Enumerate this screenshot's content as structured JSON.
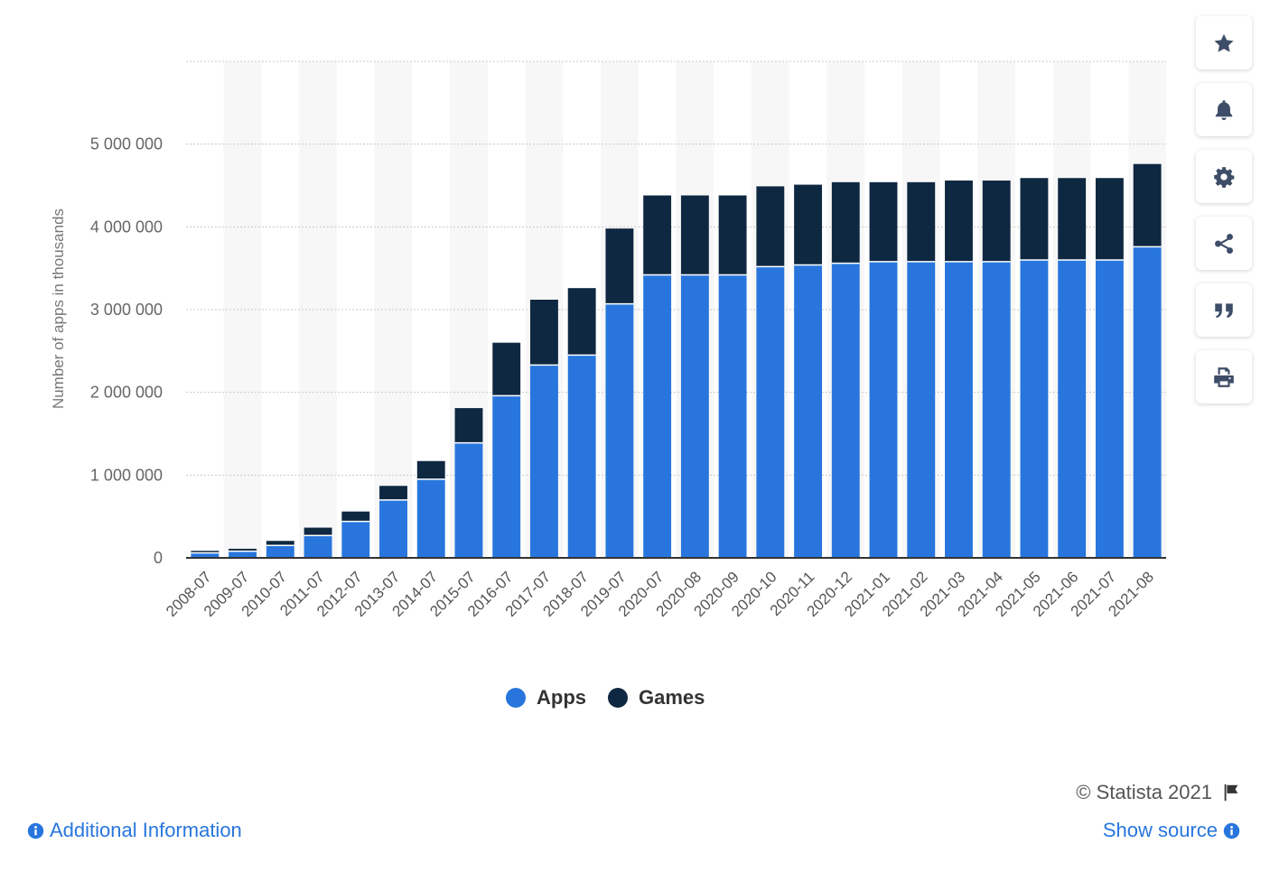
{
  "chart_data": {
    "type": "bar",
    "stacked": true,
    "ylabel": "Number of apps in thousands",
    "xlabel": "",
    "ylim": [
      0,
      6000000
    ],
    "yticks": [
      0,
      1000000,
      2000000,
      3000000,
      4000000,
      5000000
    ],
    "ytick_labels": [
      "0",
      "1 000 000",
      "2 000 000",
      "3 000 000",
      "4 000 000",
      "5 000 000"
    ],
    "grid": true,
    "legend_position": "bottom-center",
    "categories": [
      "2008-07",
      "2009-07",
      "2010-07",
      "2011-07",
      "2012-07",
      "2013-07",
      "2014-07",
      "2015-07",
      "2016-07",
      "2017-07",
      "2018-07",
      "2019-07",
      "2020-07",
      "2020-08",
      "2020-09",
      "2020-10",
      "2020-11",
      "2020-12",
      "2021-01",
      "2021-02",
      "2021-03",
      "2021-04",
      "2021-05",
      "2021-06",
      "2021-07",
      "2021-08"
    ],
    "series": [
      {
        "name": "Apps",
        "color": "#2876dd",
        "values": [
          60000,
          80000,
          150000,
          270000,
          440000,
          700000,
          950000,
          1390000,
          1960000,
          2330000,
          2450000,
          3070000,
          3420000,
          3420000,
          3420000,
          3520000,
          3540000,
          3560000,
          3580000,
          3580000,
          3580000,
          3580000,
          3600000,
          3600000,
          3600000,
          3760000
        ]
      },
      {
        "name": "Games",
        "color": "#0f2841",
        "values": [
          25000,
          30000,
          55000,
          95000,
          120000,
          170000,
          220000,
          420000,
          640000,
          790000,
          810000,
          910000,
          960000,
          960000,
          960000,
          970000,
          970000,
          980000,
          960000,
          960000,
          980000,
          980000,
          990000,
          990000,
          990000,
          1000000
        ]
      }
    ]
  },
  "legend": {
    "apps": "Apps",
    "games": "Games"
  },
  "colors": {
    "apps": "#2876dd",
    "games": "#0f2841",
    "link": "#2876dd"
  },
  "toolbar": {
    "icons": [
      "star-icon",
      "bell-icon",
      "gear-icon",
      "share-icon",
      "quote-icon",
      "print-icon"
    ]
  },
  "footer": {
    "credit": "© Statista 2021",
    "additional_info": "Additional Information",
    "show_source": "Show source"
  }
}
